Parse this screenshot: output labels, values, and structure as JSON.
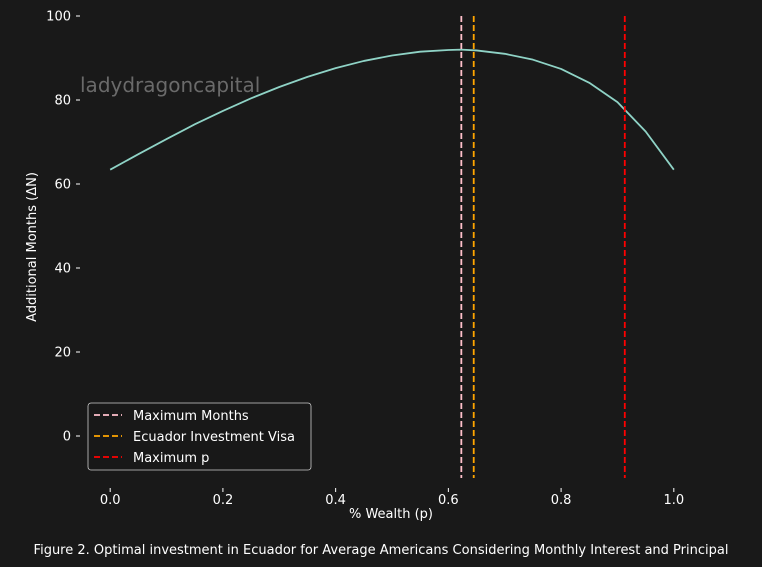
{
  "chart_data": {
    "type": "line",
    "caption": "Figure 2. Optimal investment in Ecuador for Average Americans Considering Monthly Interest and Principal",
    "xlabel": "% Wealth (p)",
    "ylabel": "Additional Months (ΔN)",
    "watermark": "ladydragoncapital",
    "xlim": [
      -0.05,
      1.05
    ],
    "ylim": [
      -10,
      100
    ],
    "x_ticks": [
      0.0,
      0.2,
      0.4,
      0.6,
      0.8,
      1.0
    ],
    "x_tick_labels": [
      "0.0",
      "0.2",
      "0.4",
      "0.6",
      "0.8",
      "1.0"
    ],
    "y_ticks": [
      0,
      20,
      40,
      60,
      80,
      100
    ],
    "y_tick_labels": [
      "0",
      "20",
      "40",
      "60",
      "80",
      "100"
    ],
    "grid": false,
    "legend_position": "lower-left",
    "series": [
      {
        "color": "#8fd3c6",
        "x": [
          0.0,
          0.05,
          0.1,
          0.15,
          0.2,
          0.25,
          0.3,
          0.35,
          0.4,
          0.45,
          0.5,
          0.55,
          0.6,
          0.623,
          0.65,
          0.7,
          0.75,
          0.8,
          0.85,
          0.9,
          0.95,
          1.0
        ],
        "y": [
          63.4,
          67.1,
          70.7,
          74.2,
          77.4,
          80.4,
          83.1,
          85.5,
          87.6,
          89.3,
          90.6,
          91.5,
          91.9,
          92.0,
          91.8,
          91.0,
          89.6,
          87.4,
          84.1,
          79.5,
          72.5,
          63.4
        ]
      }
    ],
    "vlines": [
      {
        "name": "Maximum Months",
        "x": 0.623,
        "color": "#ffc0cb"
      },
      {
        "name": "Ecuador Investment Visa",
        "x": 0.645,
        "color": "#ffa500"
      },
      {
        "name": "Maximum p",
        "x": 0.913,
        "color": "#ff0000"
      }
    ]
  }
}
